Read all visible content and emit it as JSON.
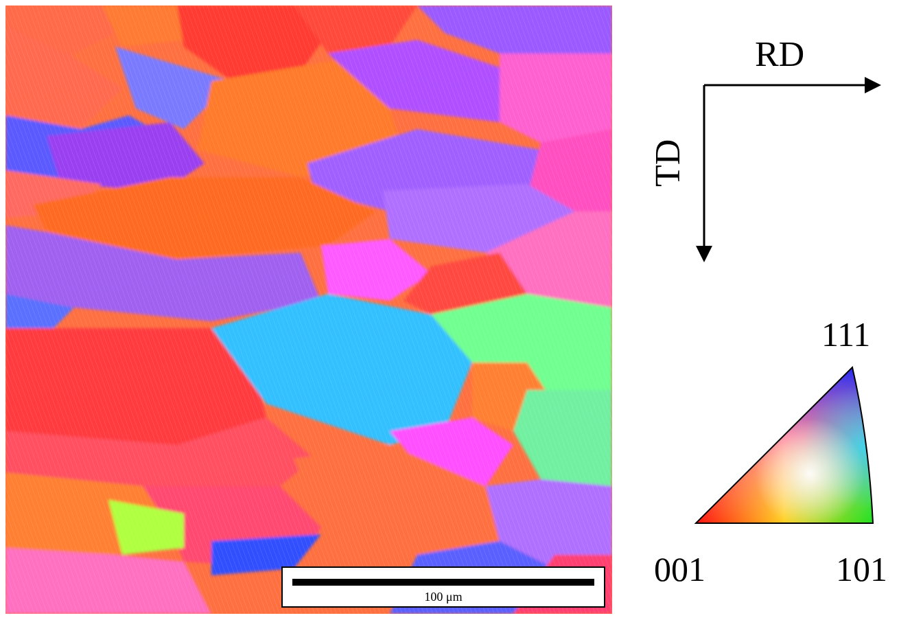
{
  "scale_bar": {
    "label": "100 μm"
  },
  "directions": {
    "rd": "RD",
    "td": "TD"
  },
  "ipf_legend": {
    "corner_111": "111",
    "corner_001": "001",
    "corner_101": "101"
  },
  "colors": {
    "red_001": "#ff2020",
    "green_101": "#20e020",
    "blue_111": "#3030ff"
  }
}
